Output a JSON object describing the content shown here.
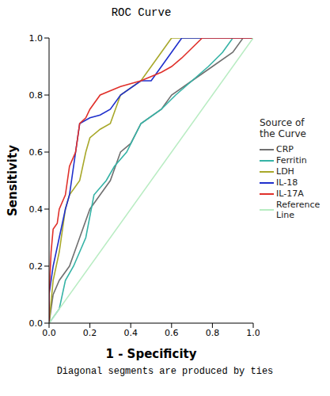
{
  "chart_data": {
    "type": "line",
    "title": "ROC Curve",
    "x_label": "1 - Specificity",
    "y_label": "Sensitivity",
    "legend_title": "Source of the Curve",
    "legend": "right",
    "annotations": [
      "Diagonal segments are produced by ties"
    ],
    "xlim": [
      0,
      1
    ],
    "ylim": [
      0,
      1
    ],
    "xticks": [
      {
        "value": 0,
        "label": "0.0"
      },
      0.2,
      0.4,
      0.6,
      0.8,
      {
        "value": 1,
        "label": "1.0"
      }
    ],
    "yticks": [
      {
        "value": 0,
        "label": "0.0"
      },
      0.2,
      0.4,
      0.6,
      0.8,
      {
        "value": 1,
        "label": "1.0"
      }
    ],
    "grid": false,
    "series": [
      {
        "name": "CRP",
        "color": "#707070",
        "x": [
          0,
          0.02,
          0.05,
          0.1,
          0.15,
          0.2,
          0.25,
          0.3,
          0.35,
          0.4,
          0.45,
          0.55,
          0.6,
          0.7,
          0.8,
          0.9,
          0.95,
          1
        ],
        "values": [
          0,
          0.1,
          0.15,
          0.2,
          0.3,
          0.4,
          0.45,
          0.5,
          0.6,
          0.63,
          0.7,
          0.75,
          0.8,
          0.85,
          0.9,
          0.95,
          1,
          1
        ]
      },
      {
        "name": "Ferritin",
        "color": "#35b3a6",
        "x": [
          0,
          0.05,
          0.08,
          0.12,
          0.18,
          0.22,
          0.28,
          0.32,
          0.38,
          0.45,
          0.55,
          0.62,
          0.7,
          0.78,
          0.85,
          0.9,
          1
        ],
        "values": [
          0,
          0.05,
          0.15,
          0.2,
          0.3,
          0.45,
          0.5,
          0.55,
          0.6,
          0.7,
          0.75,
          0.8,
          0.85,
          0.9,
          0.95,
          1,
          1
        ]
      },
      {
        "name": "LDH",
        "color": "#a8a82a",
        "x": [
          0,
          0.02,
          0.05,
          0.08,
          0.1,
          0.15,
          0.18,
          0.2,
          0.25,
          0.3,
          0.35,
          0.45,
          0.5,
          0.55,
          0.6,
          1
        ],
        "values": [
          0,
          0.15,
          0.25,
          0.4,
          0.45,
          0.5,
          0.6,
          0.65,
          0.68,
          0.7,
          0.8,
          0.85,
          0.9,
          0.95,
          1,
          1
        ]
      },
      {
        "name": "IL-18",
        "color": "#1f2fcc",
        "x": [
          0,
          0,
          0.02,
          0.05,
          0.08,
          0.1,
          0.13,
          0.15,
          0.2,
          0.25,
          0.3,
          0.35,
          0.45,
          0.5,
          0.55,
          0.6,
          0.65,
          1
        ],
        "values": [
          0,
          0.1,
          0.2,
          0.3,
          0.4,
          0.45,
          0.6,
          0.7,
          0.72,
          0.73,
          0.75,
          0.8,
          0.85,
          0.85,
          0.9,
          0.95,
          1,
          1
        ]
      },
      {
        "name": "IL-17A",
        "color": "#e0302a",
        "x": [
          0,
          0,
          0.01,
          0.02,
          0.04,
          0.05,
          0.08,
          0.1,
          0.13,
          0.15,
          0.18,
          0.2,
          0.25,
          0.35,
          0.45,
          0.55,
          0.6,
          0.65,
          0.75,
          1
        ],
        "values": [
          0,
          0.1,
          0.25,
          0.33,
          0.35,
          0.4,
          0.45,
          0.55,
          0.6,
          0.7,
          0.72,
          0.75,
          0.8,
          0.83,
          0.85,
          0.88,
          0.9,
          0.93,
          1,
          1
        ]
      },
      {
        "name": "Reference Line",
        "color": "#b8ecc2",
        "x": [
          0,
          1
        ],
        "values": [
          0,
          1
        ]
      }
    ]
  }
}
